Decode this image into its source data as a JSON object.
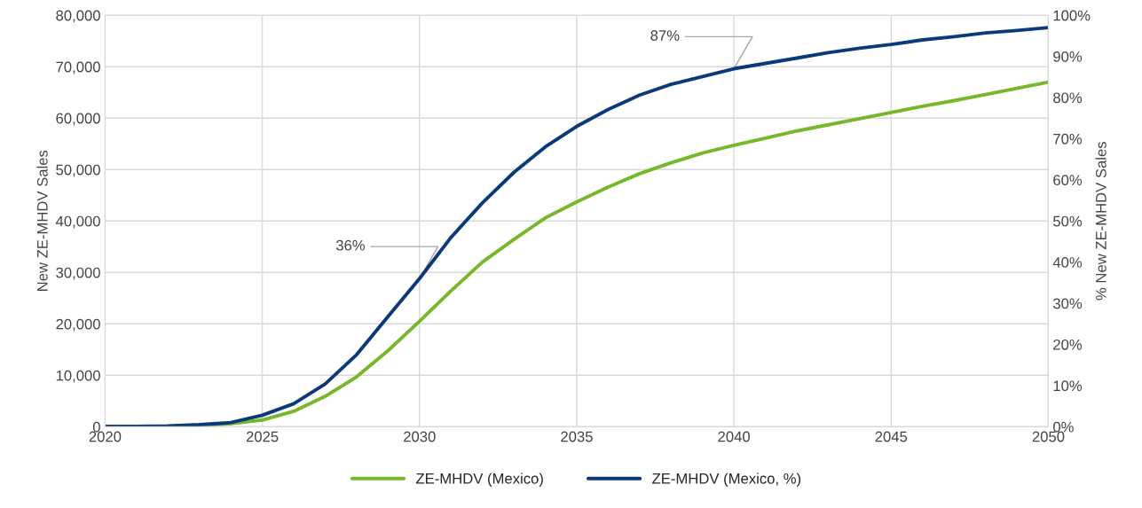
{
  "chart_data": {
    "type": "line",
    "ylabel": "New ZE-MHDV Sales",
    "y2label": "% New ZE-MHDV Sales",
    "x": [
      2020,
      2021,
      2022,
      2023,
      2024,
      2025,
      2026,
      2027,
      2028,
      2029,
      2030,
      2031,
      2032,
      2033,
      2034,
      2035,
      2036,
      2037,
      2038,
      2039,
      2040,
      2041,
      2042,
      2043,
      2044,
      2045,
      2046,
      2047,
      2048,
      2049,
      2050
    ],
    "series": [
      {
        "name": "ZE-MHDV (Mexico)",
        "color": "#76b82a",
        "values": [
          null,
          null,
          100,
          200,
          600,
          1300,
          3000,
          5900,
          9700,
          14800,
          20500,
          26400,
          32000,
          36400,
          40600,
          43700,
          46600,
          49200,
          51300,
          53200,
          54700,
          56100,
          57500,
          58700,
          59900,
          61100,
          62300,
          63400,
          64600,
          65800,
          67000
        ]
      },
      {
        "name": "ZE-MHDV (Mexico, %)",
        "color": "#0b3a7a",
        "axis": "y2",
        "values": [
          0.1,
          0.1,
          0.2,
          0.5,
          1,
          2.8,
          5.6,
          10.4,
          17.5,
          26.8,
          36,
          46,
          54.4,
          61.8,
          68,
          73,
          77.1,
          80.6,
          83.2,
          85.1,
          87,
          88.3,
          89.6,
          90.9,
          92,
          92.9,
          94,
          94.8,
          95.7,
          96.3,
          97
        ]
      }
    ],
    "xlim": [
      2020,
      2050
    ],
    "xticks": [
      2020,
      2025,
      2030,
      2035,
      2040,
      2045,
      2050
    ],
    "ylim": [
      0,
      80000
    ],
    "yticks": [
      {
        "value": 0,
        "label": "0"
      },
      {
        "value": 10000,
        "label": "10,000"
      },
      {
        "value": 20000,
        "label": "20,000"
      },
      {
        "value": 30000,
        "label": "30,000"
      },
      {
        "value": 40000,
        "label": "40,000"
      },
      {
        "value": 50000,
        "label": "50,000"
      },
      {
        "value": 60000,
        "label": "60,000"
      },
      {
        "value": 70000,
        "label": "70,000"
      },
      {
        "value": 80000,
        "label": "80,000"
      }
    ],
    "y2lim": [
      0,
      100
    ],
    "y2ticks": [
      {
        "value": 0,
        "label": "0%"
      },
      {
        "value": 10,
        "label": "10%"
      },
      {
        "value": 20,
        "label": "20%"
      },
      {
        "value": 30,
        "label": "30%"
      },
      {
        "value": 40,
        "label": "40%"
      },
      {
        "value": 50,
        "label": "50%"
      },
      {
        "value": 60,
        "label": "60%"
      },
      {
        "value": 70,
        "label": "70%"
      },
      {
        "value": 80,
        "label": "80%"
      },
      {
        "value": 90,
        "label": "90%"
      },
      {
        "value": 100,
        "label": "100%"
      }
    ],
    "annotations": [
      {
        "text": "36%",
        "x": 2030,
        "y": 28800
      },
      {
        "text": "87%",
        "x": 2040,
        "y": 69600
      }
    ],
    "grid": true,
    "legend": "bottom",
    "marker": "none",
    "line_style": "solid"
  }
}
